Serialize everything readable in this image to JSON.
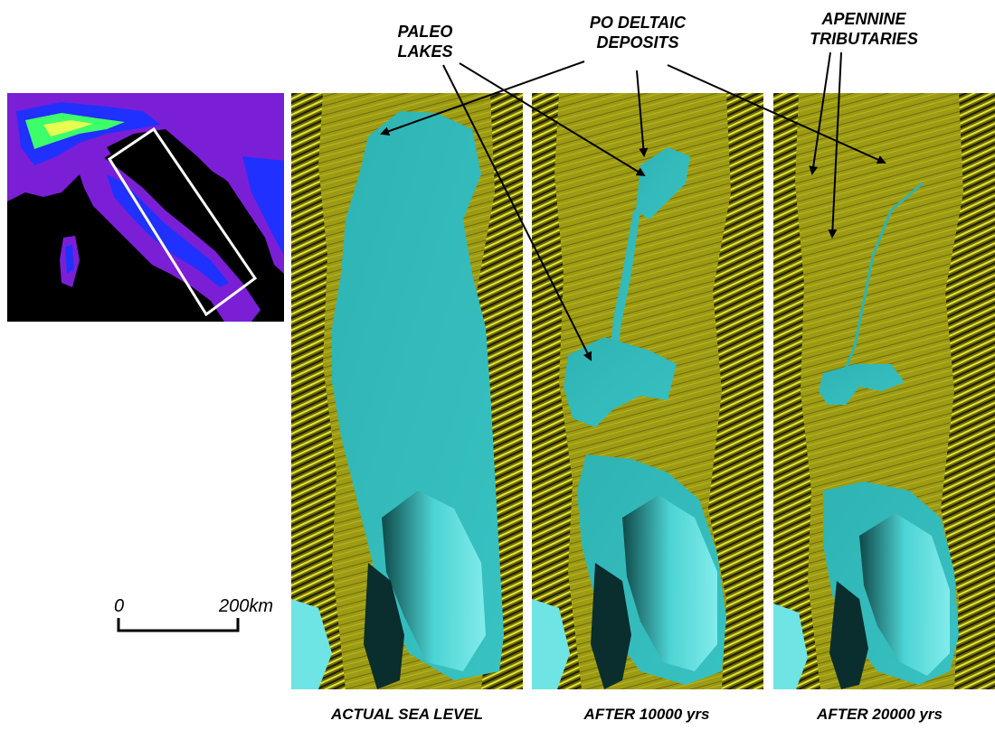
{
  "annotations": {
    "paleo_lakes": [
      "PALEO",
      "LAKES"
    ],
    "po_deltaic_deposits": [
      "PO DELTAIC",
      "DEPOSITS"
    ],
    "apennine_tributaries": [
      "APENNINE",
      "TRIBUTARIES"
    ]
  },
  "panels": [
    {
      "caption": "ACTUAL SEA LEVEL"
    },
    {
      "caption": "AFTER 10000 yrs"
    },
    {
      "caption": "AFTER 20000 yrs"
    }
  ],
  "scale_bar": {
    "start": "0",
    "end": "200km"
  },
  "colors": {
    "land": "#9d9b14",
    "land_shadow": "#3a3a06",
    "land_light": "#e2e030",
    "sea": "#2fb3b3",
    "sea_light": "#6fe4e4",
    "sea_dark": "#0f5a5a",
    "inset_bg": "#000000",
    "inset_purple": "#7a1fd6",
    "inset_blue": "#2030ff",
    "inset_green": "#3cff6a",
    "box_outline": "#ffffff"
  }
}
